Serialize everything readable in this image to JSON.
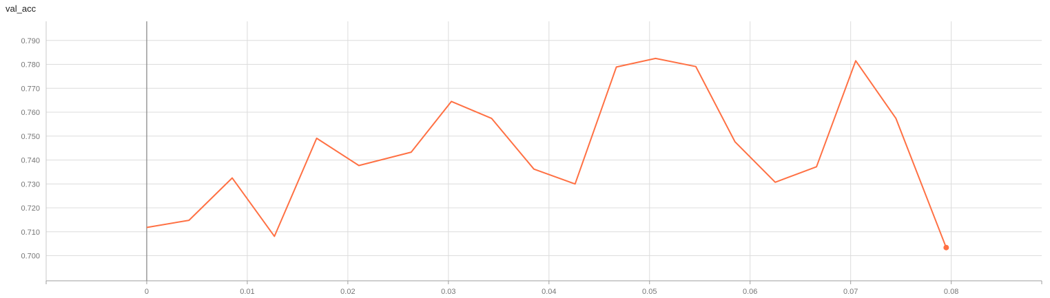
{
  "chart_data": {
    "type": "line",
    "title": "val_acc",
    "xlim": [
      -0.01,
      0.089
    ],
    "ylim": [
      0.6895,
      0.798
    ],
    "xticks": [
      "0",
      "0.01",
      "0.02",
      "0.03",
      "0.04",
      "0.05",
      "0.06",
      "0.07",
      "0.08"
    ],
    "xtick_values": [
      0,
      0.01,
      0.02,
      0.03,
      0.04,
      0.05,
      0.06,
      0.07,
      0.08
    ],
    "yticks": [
      "0.700",
      "0.710",
      "0.720",
      "0.730",
      "0.740",
      "0.750",
      "0.760",
      "0.770",
      "0.780",
      "0.790"
    ],
    "ytick_values": [
      0.7,
      0.71,
      0.72,
      0.73,
      0.74,
      0.75,
      0.76,
      0.77,
      0.78,
      0.79
    ],
    "grid": true,
    "series": [
      {
        "color": "#ff7043",
        "x": [
          0,
          0.0042,
          0.0085,
          0.0127,
          0.0169,
          0.0211,
          0.0263,
          0.0303,
          0.0343,
          0.0385,
          0.0426,
          0.0467,
          0.0506,
          0.0546,
          0.0585,
          0.0625,
          0.0666,
          0.0705,
          0.0745,
          0.0795
        ],
        "y": [
          0.7118,
          0.7148,
          0.7325,
          0.7081,
          0.7491,
          0.7377,
          0.7433,
          0.7645,
          0.7574,
          0.7362,
          0.73,
          0.7789,
          0.7825,
          0.7791,
          0.7476,
          0.7307,
          0.7372,
          0.7815,
          0.7574,
          0.7034
        ]
      }
    ]
  }
}
